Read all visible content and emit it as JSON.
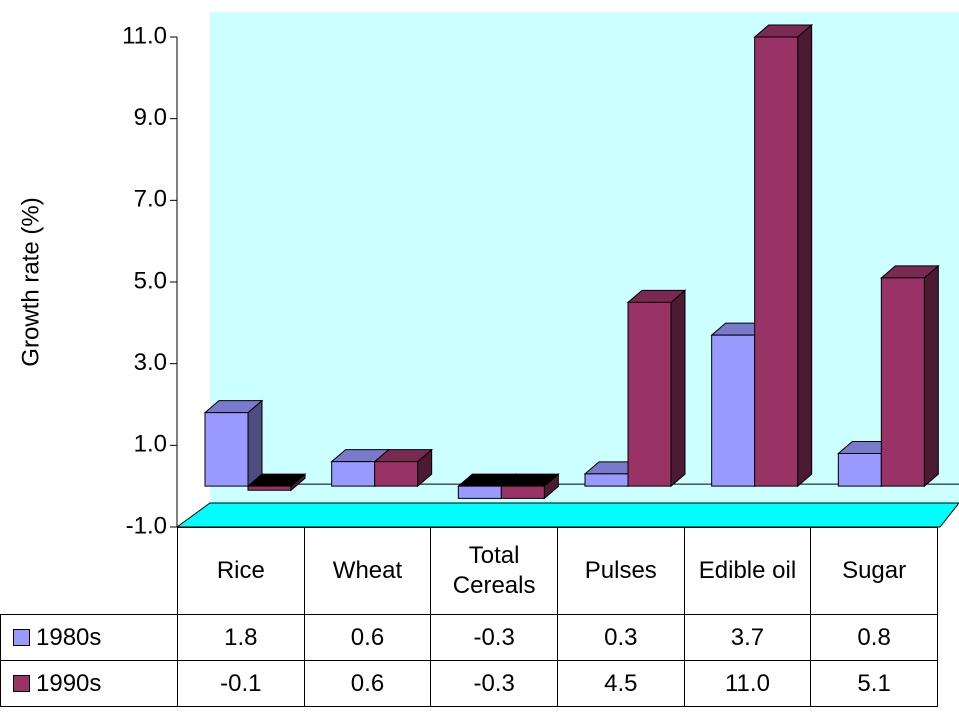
{
  "chart_data": {
    "type": "bar3d",
    "y_label": "Growth rate (%)",
    "categories": [
      "Rice",
      "Wheat",
      "Total Cereals",
      "Pulses",
      "Edible oil",
      "Sugar"
    ],
    "series": [
      {
        "name": "1980s",
        "color": "#9999ff",
        "values": [
          1.8,
          0.6,
          -0.3,
          0.3,
          3.7,
          0.8
        ],
        "value_labels": [
          "1.8",
          "0.6",
          "-0.3",
          "0.3",
          "3.7",
          "0.8"
        ]
      },
      {
        "name": "1990s",
        "color": "#993366",
        "values": [
          -0.1,
          0.6,
          -0.3,
          4.5,
          11.0,
          5.1
        ],
        "value_labels": [
          "-0.1",
          "0.6",
          "-0.3",
          "4.5",
          "11.0",
          "5.1"
        ]
      }
    ],
    "ylim": [
      -1,
      11
    ],
    "yticks": [
      {
        "value": -1,
        "label": "-1.0"
      },
      {
        "value": 1,
        "label": "1.0"
      },
      {
        "value": 3,
        "label": "3.0"
      },
      {
        "value": 5,
        "label": "5.0"
      },
      {
        "value": 7,
        "label": "7.0"
      },
      {
        "value": 9,
        "label": "9.0"
      },
      {
        "value": 11,
        "label": "11.0"
      }
    ]
  }
}
